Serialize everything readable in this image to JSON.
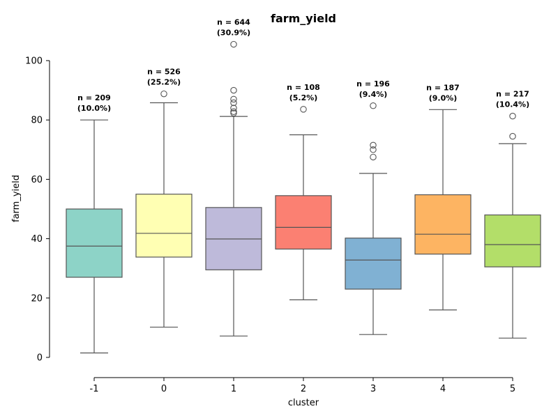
{
  "chart_data": {
    "type": "box",
    "title": "farm_yield",
    "xlabel": "cluster",
    "ylabel": "farm_yield",
    "ylim": [
      0,
      100
    ],
    "yticks": [
      0,
      20,
      40,
      60,
      80,
      100
    ],
    "grid": false,
    "categories": [
      "-1",
      "0",
      "1",
      "2",
      "3",
      "4",
      "5"
    ],
    "boxes": [
      {
        "category": "-1",
        "whisker_low": 1.5,
        "q1": 27.0,
        "median": 37.5,
        "q3": 50.0,
        "whisker_high": 80.0,
        "fliers": [],
        "color": "#8dd3c7",
        "n_label": "n = 209",
        "pct_label": "(10.0%)"
      },
      {
        "category": "0",
        "whisker_low": 10.2,
        "q1": 33.8,
        "median": 41.8,
        "q3": 55.0,
        "whisker_high": 85.8,
        "fliers": [
          88.8
        ],
        "color": "#ffffb3",
        "n_label": "n = 526",
        "pct_label": "(25.2%)"
      },
      {
        "category": "1",
        "whisker_low": 7.2,
        "q1": 29.5,
        "median": 39.9,
        "q3": 50.5,
        "whisker_high": 81.2,
        "fliers": [
          105.5,
          90.0,
          87.0,
          85.8,
          84.0,
          82.8,
          82.3
        ],
        "color": "#bebada",
        "n_label": "n = 644",
        "pct_label": "(30.9%)"
      },
      {
        "category": "2",
        "whisker_low": 19.4,
        "q1": 36.5,
        "median": 43.8,
        "q3": 54.5,
        "whisker_high": 75.0,
        "fliers": [
          83.6
        ],
        "color": "#fb8072",
        "n_label": "n = 108",
        "pct_label": "(5.2%)"
      },
      {
        "category": "3",
        "whisker_low": 7.7,
        "q1": 23.0,
        "median": 32.8,
        "q3": 40.2,
        "whisker_high": 62.0,
        "fliers": [
          84.8,
          71.5,
          70.0,
          67.5
        ],
        "color": "#80b1d3",
        "n_label": "n = 196",
        "pct_label": "(9.4%)"
      },
      {
        "category": "4",
        "whisker_low": 16.0,
        "q1": 34.8,
        "median": 41.5,
        "q3": 54.8,
        "whisker_high": 83.5,
        "fliers": [],
        "color": "#fdb462",
        "n_label": "n = 187",
        "pct_label": "(9.0%)"
      },
      {
        "category": "5",
        "whisker_low": 6.5,
        "q1": 30.5,
        "median": 38.0,
        "q3": 48.0,
        "whisker_high": 72.0,
        "fliers": [
          81.3,
          74.5
        ],
        "color": "#b3de69",
        "n_label": "n = 217",
        "pct_label": "(10.4%)"
      }
    ]
  }
}
